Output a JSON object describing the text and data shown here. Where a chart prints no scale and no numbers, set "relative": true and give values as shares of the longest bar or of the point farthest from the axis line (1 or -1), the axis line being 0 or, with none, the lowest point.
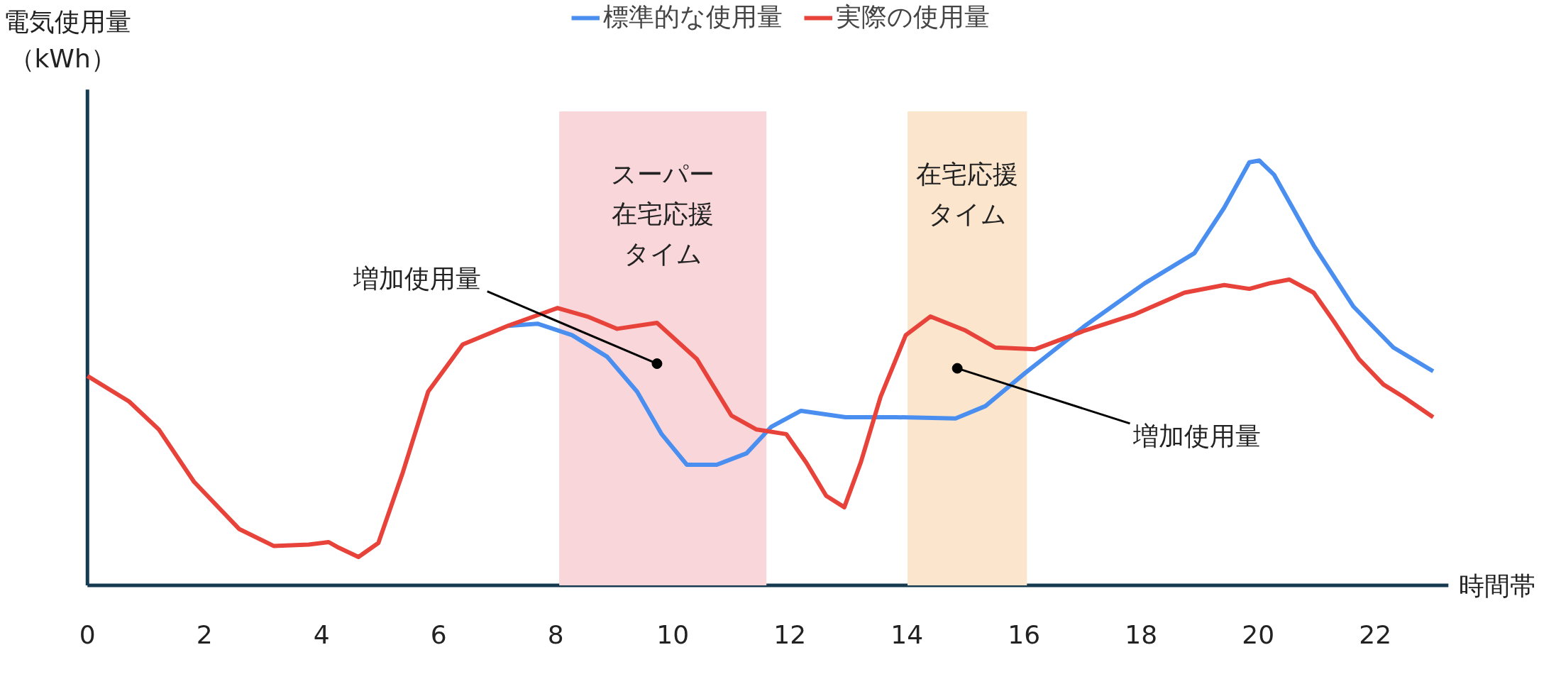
{
  "chart_data": {
    "type": "line",
    "relative": true,
    "ylabel": "電気使用量（kWh）",
    "xlabel": "時間帯",
    "xlim": [
      0,
      23.25
    ],
    "xticks": [
      0,
      2,
      4,
      6,
      8,
      10,
      12,
      14,
      16,
      18,
      20,
      22
    ],
    "tick_labels": "x",
    "grid": false,
    "legend": "top",
    "marker": "none",
    "line_style": "solid",
    "series": [
      {
        "name": "標準的な使用量",
        "color": "#4a8ff0",
        "x": [
          7.18,
          7.69,
          8.28,
          8.88,
          9.39,
          9.81,
          10.24,
          10.75,
          11.26,
          11.68,
          12.19,
          12.95,
          13.81,
          14.83,
          15.34,
          16.02,
          17.04,
          18.06,
          18.91,
          19.42,
          19.85,
          20.02,
          20.27,
          20.95,
          21.63,
          22.31,
          22.99
        ],
        "values": [
          0.611,
          0.616,
          0.589,
          0.538,
          0.456,
          0.356,
          0.284,
          0.284,
          0.311,
          0.373,
          0.411,
          0.396,
          0.396,
          0.393,
          0.422,
          0.5,
          0.611,
          0.711,
          0.782,
          0.889,
          0.996,
          1.0,
          0.967,
          0.8,
          0.656,
          0.56,
          0.504
        ]
      },
      {
        "name": "実際の使用量",
        "color": "#e8433a",
        "x": [
          0,
          0.71,
          1.22,
          1.82,
          2.59,
          3.18,
          3.78,
          4.12,
          4.29,
          4.63,
          4.97,
          5.39,
          5.82,
          6.41,
          7.18,
          8.03,
          8.54,
          9.05,
          9.73,
          10.41,
          11.0,
          11.43,
          11.94,
          12.28,
          12.62,
          12.93,
          13.21,
          13.55,
          13.98,
          14.4,
          15.0,
          15.51,
          16.19,
          17.04,
          17.89,
          18.74,
          19.42,
          19.85,
          20.19,
          20.53,
          20.95,
          21.29,
          21.72,
          22.14,
          22.48,
          22.99
        ],
        "values": [
          0.493,
          0.433,
          0.367,
          0.244,
          0.133,
          0.093,
          0.096,
          0.102,
          0.089,
          0.067,
          0.1,
          0.267,
          0.456,
          0.567,
          0.611,
          0.653,
          0.633,
          0.604,
          0.618,
          0.533,
          0.4,
          0.367,
          0.356,
          0.289,
          0.211,
          0.184,
          0.289,
          0.444,
          0.589,
          0.633,
          0.6,
          0.56,
          0.556,
          0.6,
          0.638,
          0.689,
          0.707,
          0.698,
          0.711,
          0.72,
          0.689,
          0.622,
          0.533,
          0.473,
          0.444,
          0.396
        ]
      }
    ],
    "bands": [
      {
        "axis": "x",
        "from": 8.06,
        "to": 11.6,
        "label": "スーパー在宅応援タイム",
        "color": "#f9d6da"
      },
      {
        "axis": "x",
        "from": 14.01,
        "to": 16.05,
        "label": "在宅応援タイム",
        "color": "#fbe6cd"
      }
    ],
    "annotations": [
      {
        "text": "増加使用量",
        "x": 9.73,
        "y": 0.522
      },
      {
        "text": "増加使用量",
        "x": 14.86,
        "y": 0.511
      }
    ]
  }
}
